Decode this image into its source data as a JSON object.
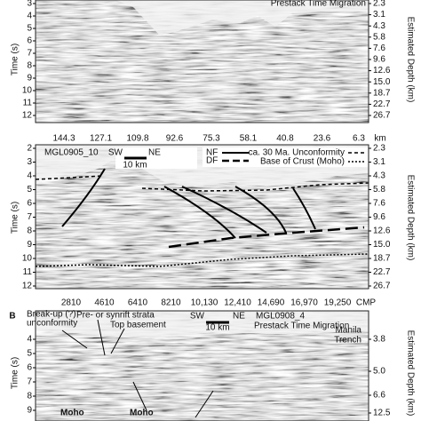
{
  "panels": [
    {
      "time_axis_title": "Time (s)",
      "depth_axis_title": "Estimated Depth (km)",
      "time_ticks": [
        "3",
        "4",
        "5",
        "6",
        "7",
        "8",
        "9",
        "10",
        "11",
        "12"
      ],
      "depth_ticks": [
        "2.3",
        "3.1",
        "4.3",
        "5.8",
        "7.6",
        "9.6",
        "12.6",
        "15.0",
        "18.7",
        "22.7",
        "26.7"
      ],
      "header": "Prestack Time Migration",
      "distance_ticks": [
        "144.3",
        "127.1",
        "109.8",
        "92.6",
        "75.3",
        "58.1",
        "40.8",
        "23.6",
        "6.3"
      ],
      "distance_unit": "km"
    },
    {
      "time_axis_title": "Time (s)",
      "depth_axis_title": "Estimated Depth (km)",
      "time_ticks": [
        "2",
        "3",
        "4",
        "5",
        "6",
        "7",
        "8",
        "9",
        "10",
        "11",
        "12"
      ],
      "depth_ticks": [
        "2.3",
        "3.1",
        "4.3",
        "5.8",
        "7.6",
        "9.6",
        "12.6",
        "15.0",
        "18.7",
        "22.7",
        "26.7"
      ],
      "line_name": "MGL0905_10",
      "sw": "SW",
      "ne": "NE",
      "scale": "10 km",
      "legend": [
        "NF",
        "DF",
        "ca. 30 Ma. Unconformity",
        "Base of Crust (Moho)"
      ],
      "cmp_ticks": [
        "2810",
        "4610",
        "6410",
        "8210",
        "10,130",
        "12,410",
        "14,690",
        "16,970",
        "19,250"
      ],
      "cmp_unit": "CMP"
    },
    {
      "panel_label": "B",
      "time_axis_title": "Time (s)",
      "depth_axis_title": "Estimated Depth (km)",
      "time_ticks": [
        "4",
        "5",
        "6",
        "7",
        "8",
        "9"
      ],
      "depth_ticks": [
        "3.8",
        "5.0",
        "6.6",
        "12.5"
      ],
      "annotations": [
        "Break-up (?)",
        "unconformity",
        "Pre- or synrift strata",
        "Top basement",
        "Moho",
        "Moho"
      ],
      "sw": "SW",
      "ne": "NE",
      "scale": "10 km",
      "line_name": "MGL0908_4",
      "header": "Prestack Time Migration",
      "trench": [
        "Manila",
        "Trench"
      ]
    }
  ]
}
